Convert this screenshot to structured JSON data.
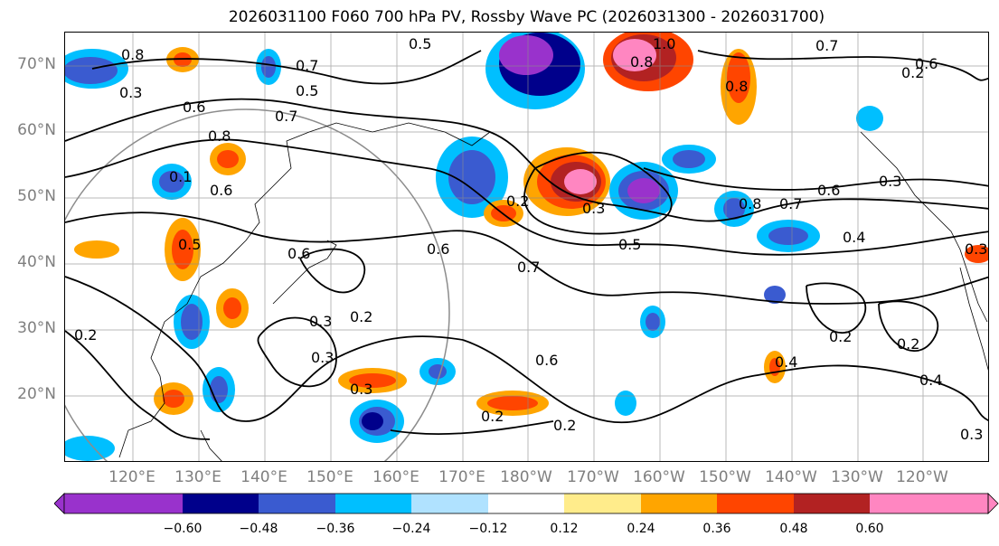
{
  "title": "2026031100 F060 700 hPa PV, Rossby Wave PC (2026031300 - 2026031700)",
  "latitude_labels": [
    "70°N",
    "60°N",
    "50°N",
    "40°N",
    "30°N",
    "20°N"
  ],
  "longitude_labels": [
    "120°E",
    "130°E",
    "140°E",
    "150°E",
    "160°E",
    "170°E",
    "180°W",
    "170°W",
    "160°W",
    "150°W",
    "140°W",
    "130°W",
    "120°W"
  ],
  "colorbar": {
    "ticks": [
      "−0.60",
      "−0.48",
      "−0.36",
      "−0.24",
      "−0.12",
      "0.12",
      "0.24",
      "0.36",
      "0.48",
      "0.60"
    ],
    "colors": [
      "#9932cc",
      "#00008b",
      "#3a5bd0",
      "#00bfff",
      "#b0e2ff",
      "#ffffff",
      "#ffec8b",
      "#ffa500",
      "#ff4500",
      "#b22222",
      "#ff86c1"
    ]
  },
  "contour_labels": [
    "0.5",
    "0.7",
    "0.7",
    "0.5",
    "0.7",
    "0.6",
    "0.8",
    "0.3",
    "0.2",
    "0.6",
    "0.8",
    "0.1",
    "0.6",
    "0.6",
    "0.5",
    "0.2",
    "0.3",
    "0.5",
    "0.6",
    "0.7",
    "0.8",
    "0.7",
    "0.6",
    "0.3",
    "0.4",
    "0.3",
    "0.3",
    "0.3",
    "0.2",
    "0.3",
    "0.6",
    "0.2",
    "0.2",
    "0.2",
    "0.4",
    "0.2",
    "0.2",
    "0.4",
    "0.3",
    "0.8",
    "1.0",
    "0.8"
  ]
}
